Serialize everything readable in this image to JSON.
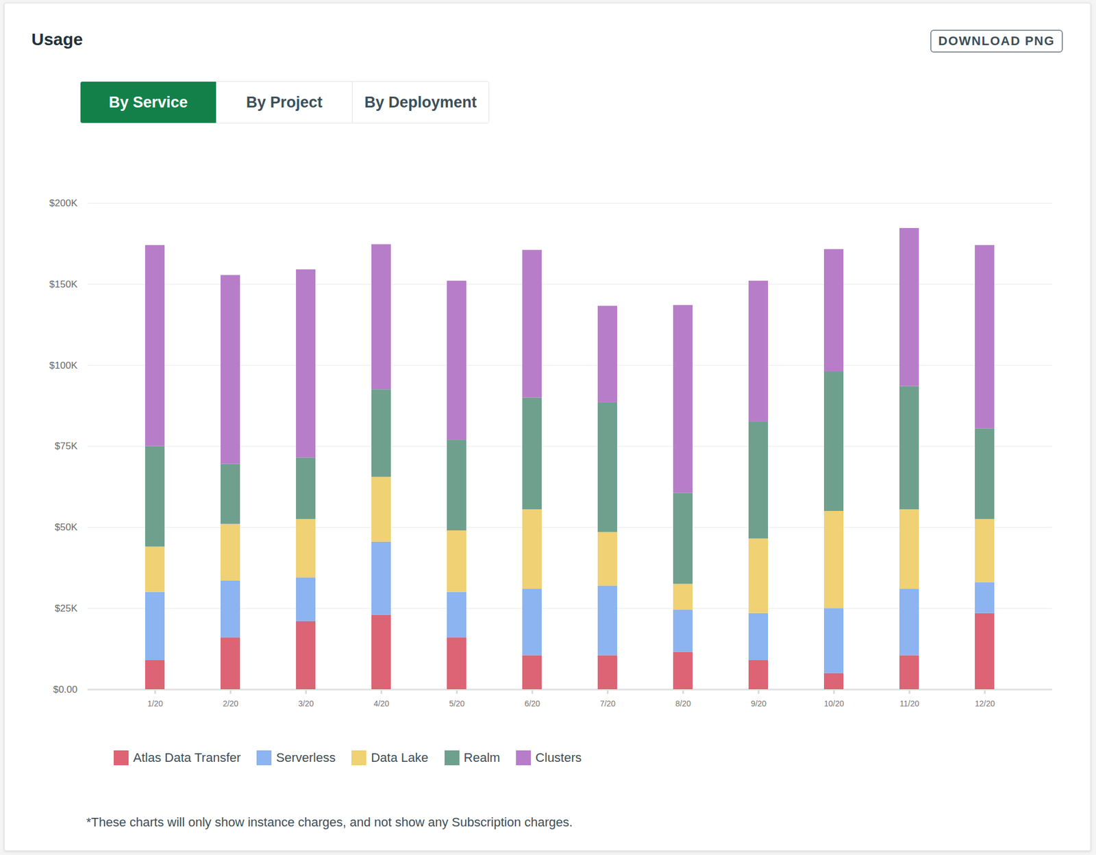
{
  "page": {
    "heading": "Usage",
    "button": "DOWNLOAD PNG",
    "tabs": [
      {
        "label": "By Service",
        "selected": true
      },
      {
        "label": "By Project",
        "selected": false
      },
      {
        "label": "By Deployment",
        "selected": false
      }
    ],
    "note": "*These charts will only show instance charges, and not show any Subscription charges."
  },
  "chart_data": {
    "type": "bar",
    "stacked": true,
    "grid": true,
    "legend": "bottom-left",
    "categories": [
      "1/20",
      "2/20",
      "3/20",
      "4/20",
      "5/20",
      "6/20",
      "7/20",
      "8/20",
      "9/20",
      "10/20",
      "11/20",
      "12/20"
    ],
    "series": [
      {
        "name": "Atlas Data Transfer",
        "color": "#dc6474",
        "values": [
          9000,
          16000,
          21000,
          23000,
          16000,
          10500,
          10500,
          11500,
          9000,
          5000,
          10500,
          23500
        ]
      },
      {
        "name": "Serverless",
        "color": "#8bb4f0",
        "values": [
          21000,
          17500,
          13500,
          22500,
          14000,
          20500,
          21500,
          13000,
          14500,
          20000,
          20500,
          9500
        ]
      },
      {
        "name": "Data Lake",
        "color": "#f0d173",
        "values": [
          14000,
          17500,
          18000,
          20000,
          19000,
          24500,
          16500,
          8000,
          23000,
          30000,
          24500,
          19500
        ]
      },
      {
        "name": "Realm",
        "color": "#6fa08e",
        "values": [
          31000,
          18500,
          19000,
          27000,
          28000,
          34500,
          40000,
          28000,
          36000,
          43000,
          38000,
          28000
        ]
      },
      {
        "name": "Clusters",
        "color": "#b87dc9",
        "values": [
          99000,
          86000,
          87500,
          82000,
          75000,
          81000,
          48000,
          76500,
          69500,
          73500,
          91000,
          93500
        ]
      }
    ],
    "ylim": [
      0,
      200000
    ],
    "yticks": [
      {
        "value": 0,
        "label": "$0.00"
      },
      {
        "value": 25000,
        "label": "$25K"
      },
      {
        "value": 50000,
        "label": "$50K"
      },
      {
        "value": 75000,
        "label": "$75K"
      },
      {
        "value": 100000,
        "label": "$100K"
      },
      {
        "value": 150000,
        "label": "$150K"
      },
      {
        "value": 200000,
        "label": "$200K"
      }
    ]
  }
}
